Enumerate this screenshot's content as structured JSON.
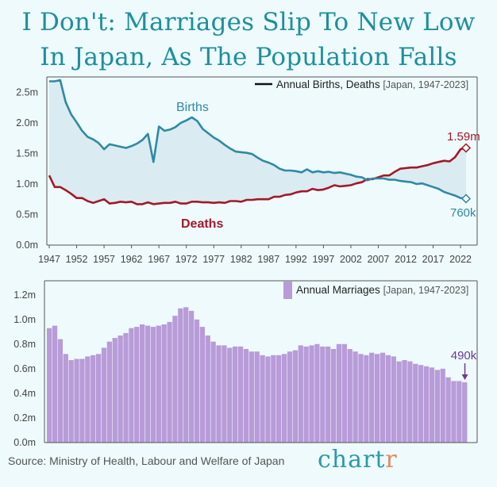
{
  "title": "I Don't: Marriages Slip To New Low In Japan, As The Population Falls",
  "title_lines": [
    "I Don't: Marriages Slip To New Low",
    "In Japan, As The Population Falls"
  ],
  "source": "Source: Ministry of Health, Labour and Welfare of Japan",
  "logo": {
    "main": "chart",
    "accent": "r"
  },
  "colors": {
    "births": "#2f8aa5",
    "deaths": "#a3192a",
    "marriages": "#b89bd8",
    "title": "#1e8f9c",
    "fill": "#d6e7ee"
  },
  "chart_data": [
    {
      "type": "line",
      "legend": {
        "label": "Annual Births, Deaths",
        "qualifier": "[Japan, 1947-2023]"
      },
      "ylim": [
        0,
        2.7
      ],
      "y_ticks": [
        0,
        0.5,
        1.0,
        1.5,
        2.0,
        2.5
      ],
      "y_tick_labels": [
        "0.0m",
        "0.5m",
        "1.0m",
        "1.5m",
        "2.0m",
        "2.5m"
      ],
      "x_ticks": [
        1947,
        1952,
        1957,
        1962,
        1967,
        1972,
        1977,
        1982,
        1987,
        1992,
        1997,
        2002,
        2007,
        2012,
        2017,
        2022
      ],
      "x": [
        1947,
        1948,
        1949,
        1950,
        1951,
        1952,
        1953,
        1954,
        1955,
        1956,
        1957,
        1958,
        1959,
        1960,
        1961,
        1962,
        1963,
        1964,
        1965,
        1966,
        1967,
        1968,
        1969,
        1970,
        1971,
        1972,
        1973,
        1974,
        1975,
        1976,
        1977,
        1978,
        1979,
        1980,
        1981,
        1982,
        1983,
        1984,
        1985,
        1986,
        1987,
        1988,
        1989,
        1990,
        1991,
        1992,
        1993,
        1994,
        1995,
        1996,
        1997,
        1998,
        1999,
        2000,
        2001,
        2002,
        2003,
        2004,
        2005,
        2006,
        2007,
        2008,
        2009,
        2010,
        2011,
        2012,
        2013,
        2014,
        2015,
        2016,
        2017,
        2018,
        2019,
        2020,
        2021,
        2022,
        2023
      ],
      "series": [
        {
          "name": "Births",
          "label": "Births",
          "end_label": "760k",
          "values": [
            2.68,
            2.68,
            2.7,
            2.34,
            2.14,
            2.01,
            1.87,
            1.77,
            1.73,
            1.67,
            1.57,
            1.65,
            1.63,
            1.61,
            1.59,
            1.62,
            1.66,
            1.72,
            1.82,
            1.36,
            1.94,
            1.87,
            1.89,
            1.93,
            2.0,
            2.04,
            2.09,
            2.03,
            1.9,
            1.83,
            1.76,
            1.71,
            1.64,
            1.58,
            1.53,
            1.52,
            1.51,
            1.49,
            1.43,
            1.38,
            1.35,
            1.31,
            1.25,
            1.22,
            1.22,
            1.21,
            1.19,
            1.24,
            1.19,
            1.21,
            1.19,
            1.2,
            1.18,
            1.19,
            1.17,
            1.15,
            1.12,
            1.11,
            1.06,
            1.09,
            1.09,
            1.09,
            1.07,
            1.07,
            1.05,
            1.04,
            1.03,
            1.0,
            1.01,
            0.98,
            0.95,
            0.92,
            0.87,
            0.84,
            0.81,
            0.77,
            0.76
          ]
        },
        {
          "name": "Deaths",
          "label": "Deaths",
          "end_label": "1.59m",
          "values": [
            1.14,
            0.95,
            0.95,
            0.9,
            0.84,
            0.77,
            0.77,
            0.72,
            0.69,
            0.72,
            0.75,
            0.68,
            0.69,
            0.71,
            0.7,
            0.71,
            0.67,
            0.67,
            0.7,
            0.67,
            0.68,
            0.69,
            0.69,
            0.71,
            0.68,
            0.68,
            0.71,
            0.71,
            0.7,
            0.7,
            0.69,
            0.7,
            0.69,
            0.72,
            0.72,
            0.71,
            0.74,
            0.74,
            0.75,
            0.75,
            0.75,
            0.79,
            0.79,
            0.82,
            0.83,
            0.86,
            0.88,
            0.88,
            0.92,
            0.9,
            0.91,
            0.94,
            0.98,
            0.96,
            0.97,
            0.98,
            1.01,
            1.03,
            1.08,
            1.08,
            1.11,
            1.14,
            1.14,
            1.2,
            1.25,
            1.26,
            1.27,
            1.27,
            1.29,
            1.31,
            1.34,
            1.36,
            1.38,
            1.37,
            1.44,
            1.57,
            1.59
          ]
        }
      ]
    },
    {
      "type": "bar",
      "legend": {
        "label": "Annual Marriages",
        "qualifier": "[Japan, 1947-2023]"
      },
      "ylim": [
        0,
        1.25
      ],
      "y_ticks": [
        0,
        0.2,
        0.4,
        0.6,
        0.8,
        1.0,
        1.2
      ],
      "y_tick_labels": [
        "0.0m",
        "0.2m",
        "0.4m",
        "0.6m",
        "0.8m",
        "1.0m",
        "1.2m"
      ],
      "x": [
        1947,
        1948,
        1949,
        1950,
        1951,
        1952,
        1953,
        1954,
        1955,
        1956,
        1957,
        1958,
        1959,
        1960,
        1961,
        1962,
        1963,
        1964,
        1965,
        1966,
        1967,
        1968,
        1969,
        1970,
        1971,
        1972,
        1973,
        1974,
        1975,
        1976,
        1977,
        1978,
        1979,
        1980,
        1981,
        1982,
        1983,
        1984,
        1985,
        1986,
        1987,
        1988,
        1989,
        1990,
        1991,
        1992,
        1993,
        1994,
        1995,
        1996,
        1997,
        1998,
        1999,
        2000,
        2001,
        2002,
        2003,
        2004,
        2005,
        2006,
        2007,
        2008,
        2009,
        2010,
        2011,
        2012,
        2013,
        2014,
        2015,
        2016,
        2017,
        2018,
        2019,
        2020,
        2021,
        2022,
        2023
      ],
      "series": [
        {
          "name": "Annual Marriages",
          "end_label": "490k",
          "values": [
            0.93,
            0.95,
            0.84,
            0.72,
            0.67,
            0.68,
            0.68,
            0.7,
            0.71,
            0.72,
            0.77,
            0.82,
            0.85,
            0.87,
            0.89,
            0.93,
            0.94,
            0.96,
            0.95,
            0.94,
            0.95,
            0.96,
            0.98,
            1.03,
            1.09,
            1.1,
            1.07,
            1.0,
            0.94,
            0.87,
            0.82,
            0.79,
            0.79,
            0.77,
            0.78,
            0.78,
            0.76,
            0.74,
            0.74,
            0.71,
            0.7,
            0.71,
            0.71,
            0.72,
            0.74,
            0.75,
            0.79,
            0.78,
            0.79,
            0.8,
            0.78,
            0.78,
            0.76,
            0.8,
            0.8,
            0.76,
            0.74,
            0.72,
            0.71,
            0.73,
            0.72,
            0.73,
            0.71,
            0.7,
            0.66,
            0.67,
            0.66,
            0.64,
            0.63,
            0.62,
            0.61,
            0.59,
            0.6,
            0.53,
            0.5,
            0.5,
            0.49
          ]
        }
      ]
    }
  ]
}
